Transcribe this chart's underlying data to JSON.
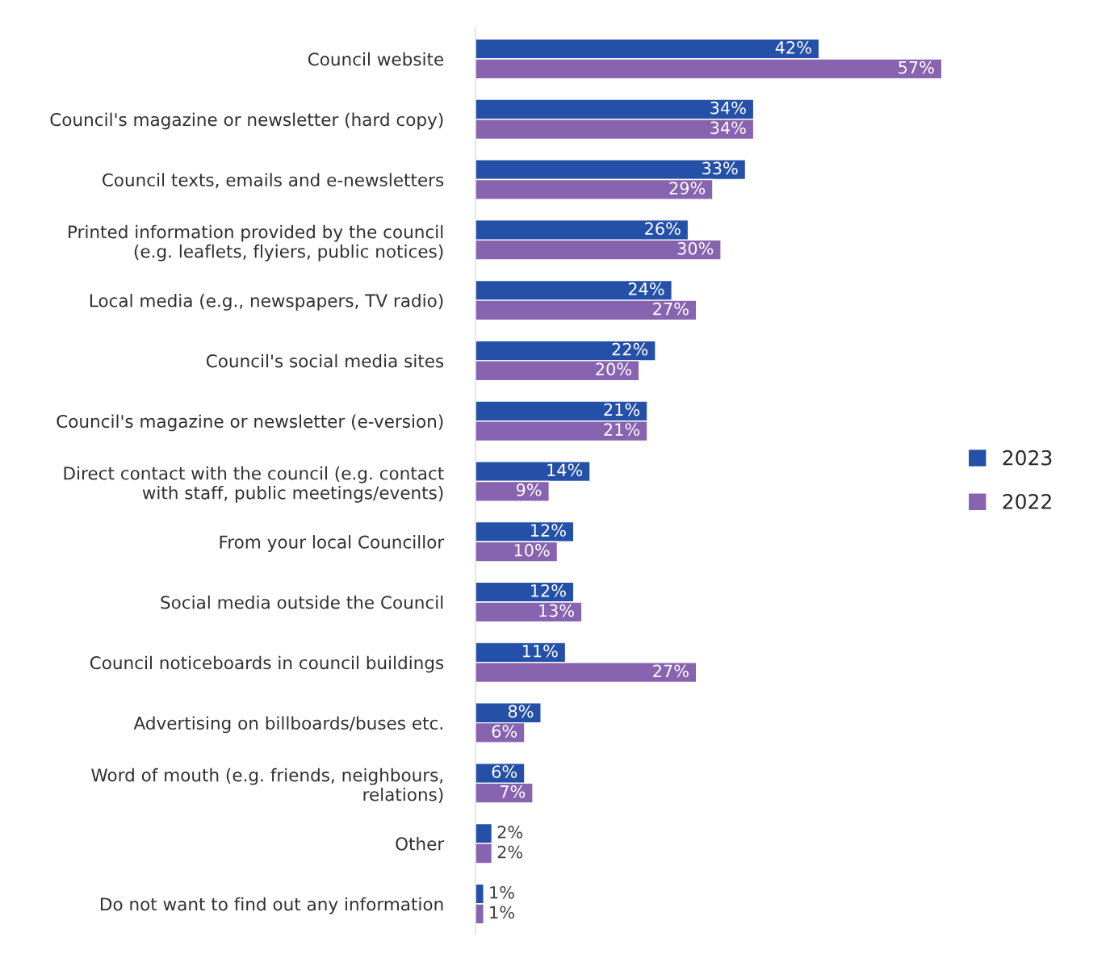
{
  "chart_data": {
    "type": "bar",
    "orientation": "horizontal",
    "categories": [
      "Council website",
      "Council's magazine or newsletter (hard copy)",
      "Council texts, emails and e-newsletters",
      "Printed information provided by the council\n(e.g. leaflets, flyiers, public notices)",
      "Local media (e.g., newspapers, TV radio)",
      "Council's social media sites",
      "Council's magazine or newsletter (e-version)",
      "Direct contact with the council (e.g. contact\nwith staff, public meetings/events)",
      "From your local Councillor",
      "Social media outside the Council",
      "Council noticeboards in council buildings",
      "Advertising on billboards/buses etc.",
      "Word of mouth (e.g. friends, neighbours,\nrelations)",
      "Other",
      "Do not want to find out any information"
    ],
    "series": [
      {
        "name": "2023",
        "color": "#2450a8",
        "values": [
          42,
          34,
          33,
          26,
          24,
          22,
          21,
          14,
          12,
          12,
          11,
          8,
          6,
          2,
          1
        ],
        "value_labels": [
          "42%",
          "34%",
          "33%",
          "26%",
          "24%",
          "22%",
          "21%",
          "14%",
          "12%",
          "12%",
          "11%",
          "8%",
          "6%",
          "2%",
          "1%"
        ]
      },
      {
        "name": "2022",
        "color": "#8763b0",
        "values": [
          57,
          34,
          29,
          30,
          27,
          20,
          21,
          9,
          10,
          13,
          27,
          6,
          7,
          2,
          1
        ],
        "value_labels": [
          "57%",
          "34%",
          "29%",
          "30%",
          "27%",
          "20%",
          "21%",
          "9%",
          "10%",
          "13%",
          "27%",
          "6%",
          "7%",
          "2%",
          "1%"
        ]
      }
    ],
    "legend": "right",
    "grid": false
  }
}
